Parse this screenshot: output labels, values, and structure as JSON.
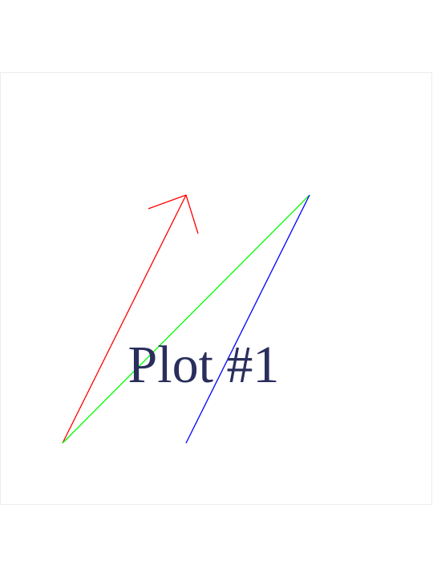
{
  "diagram": {
    "label": "Plot #1",
    "label_color": "#2a2e5c",
    "vectors": [
      {
        "name": "red-vector",
        "color": "#ff0000",
        "has_arrowhead": true
      },
      {
        "name": "green-vector",
        "color": "#00ff00",
        "has_arrowhead": false
      },
      {
        "name": "blue-vector",
        "color": "#0000ff",
        "has_arrowhead": false
      }
    ]
  }
}
